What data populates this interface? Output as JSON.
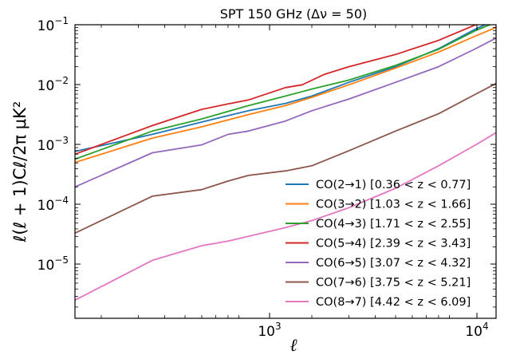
{
  "chart_data": {
    "type": "line",
    "title": "SPT 150 GHz (Δν = 50)",
    "xlabel": "ℓ",
    "ylabel": "ℓ(ℓ + 1)Cℓ/2π μK²",
    "x_scale": "log",
    "y_scale": "log",
    "xlim": [
      150,
      15000
    ],
    "ylim": [
      1.3e-06,
      0.1
    ],
    "x_ticks": [
      {
        "value": 1000,
        "base": "10",
        "exp": "3"
      },
      {
        "value": 10000,
        "base": "10",
        "exp": "4"
      }
    ],
    "y_ticks": [
      {
        "value": 0.1,
        "base": "10",
        "exp": "−1"
      },
      {
        "value": 0.01,
        "base": "10",
        "exp": "−2"
      },
      {
        "value": 0.001,
        "base": "10",
        "exp": "−3"
      },
      {
        "value": 0.0001,
        "base": "10",
        "exp": "−4"
      },
      {
        "value": 1e-05,
        "base": "10",
        "exp": "−5"
      }
    ],
    "grid": false,
    "legend_position": "lower-right",
    "series": [
      {
        "name": "CO(2→1) [0.36 < z < 0.77]",
        "color": "#1f77b4",
        "x": [
          150,
          350,
          600,
          1000,
          1500,
          2000,
          3000,
          5000,
          8000,
          12000,
          15000
        ],
        "y": [
          0.00078,
          0.0015,
          0.0024,
          0.0037,
          0.0049,
          0.0065,
          0.011,
          0.02,
          0.04,
          0.085,
          0.12
        ]
      },
      {
        "name": "CO(3→2) [1.03 < z < 1.66]",
        "color": "#ff7f0e",
        "x": [
          150,
          350,
          600,
          1000,
          1500,
          2000,
          3000,
          5000,
          8000,
          12000,
          15000
        ],
        "y": [
          0.00051,
          0.0013,
          0.002,
          0.0032,
          0.0045,
          0.0062,
          0.01,
          0.019,
          0.035,
          0.065,
          0.09
        ]
      },
      {
        "name": "CO(4→3) [1.71 < z < 2.55]",
        "color": "#2ca02c",
        "x": [
          150,
          350,
          600,
          1000,
          1500,
          2000,
          3000,
          5000,
          8000,
          12000,
          15000
        ],
        "y": [
          0.00058,
          0.0017,
          0.0027,
          0.0045,
          0.0065,
          0.0085,
          0.012,
          0.021,
          0.039,
          0.08,
          0.11
        ]
      },
      {
        "name": "CO(5→4) [2.39 < z < 3.43]",
        "color": "#d62728",
        "x": [
          150,
          350,
          600,
          800,
          1000,
          1500,
          1800,
          2300,
          3000,
          5000,
          8000,
          12000,
          15000
        ],
        "y": [
          0.0007,
          0.0021,
          0.0039,
          0.0048,
          0.0056,
          0.009,
          0.01,
          0.015,
          0.02,
          0.032,
          0.055,
          0.1,
          0.13
        ]
      },
      {
        "name": "CO(6→5) [3.07 < z < 4.32]",
        "color": "#9467bd",
        "x": [
          150,
          350,
          600,
          800,
          1000,
          1500,
          2000,
          3000,
          5000,
          8000,
          12000,
          15000
        ],
        "y": [
          0.0002,
          0.00074,
          0.001,
          0.0015,
          0.0017,
          0.0025,
          0.0037,
          0.0058,
          0.011,
          0.02,
          0.04,
          0.06
        ]
      },
      {
        "name": "CO(7→6) [3.75 < z < 5.21]",
        "color": "#8c564b",
        "x": [
          150,
          350,
          600,
          800,
          1000,
          1500,
          2000,
          3000,
          5000,
          8000,
          12000,
          15000
        ],
        "y": [
          3.4e-05,
          0.00014,
          0.00018,
          0.00025,
          0.00031,
          0.00037,
          0.00045,
          0.0008,
          0.0017,
          0.0033,
          0.007,
          0.0105
        ]
      },
      {
        "name": "CO(8→7) [4.42 < z < 6.09]",
        "color": "#e377c2",
        "x": [
          150,
          350,
          600,
          800,
          1000,
          1500,
          2000,
          3000,
          5000,
          8000,
          12000,
          15000
        ],
        "y": [
          2.6e-06,
          1.2e-05,
          2.1e-05,
          2.5e-05,
          3e-05,
          4.2e-05,
          5.5e-05,
          9e-05,
          0.00019,
          0.00045,
          0.001,
          0.0016
        ]
      }
    ]
  }
}
